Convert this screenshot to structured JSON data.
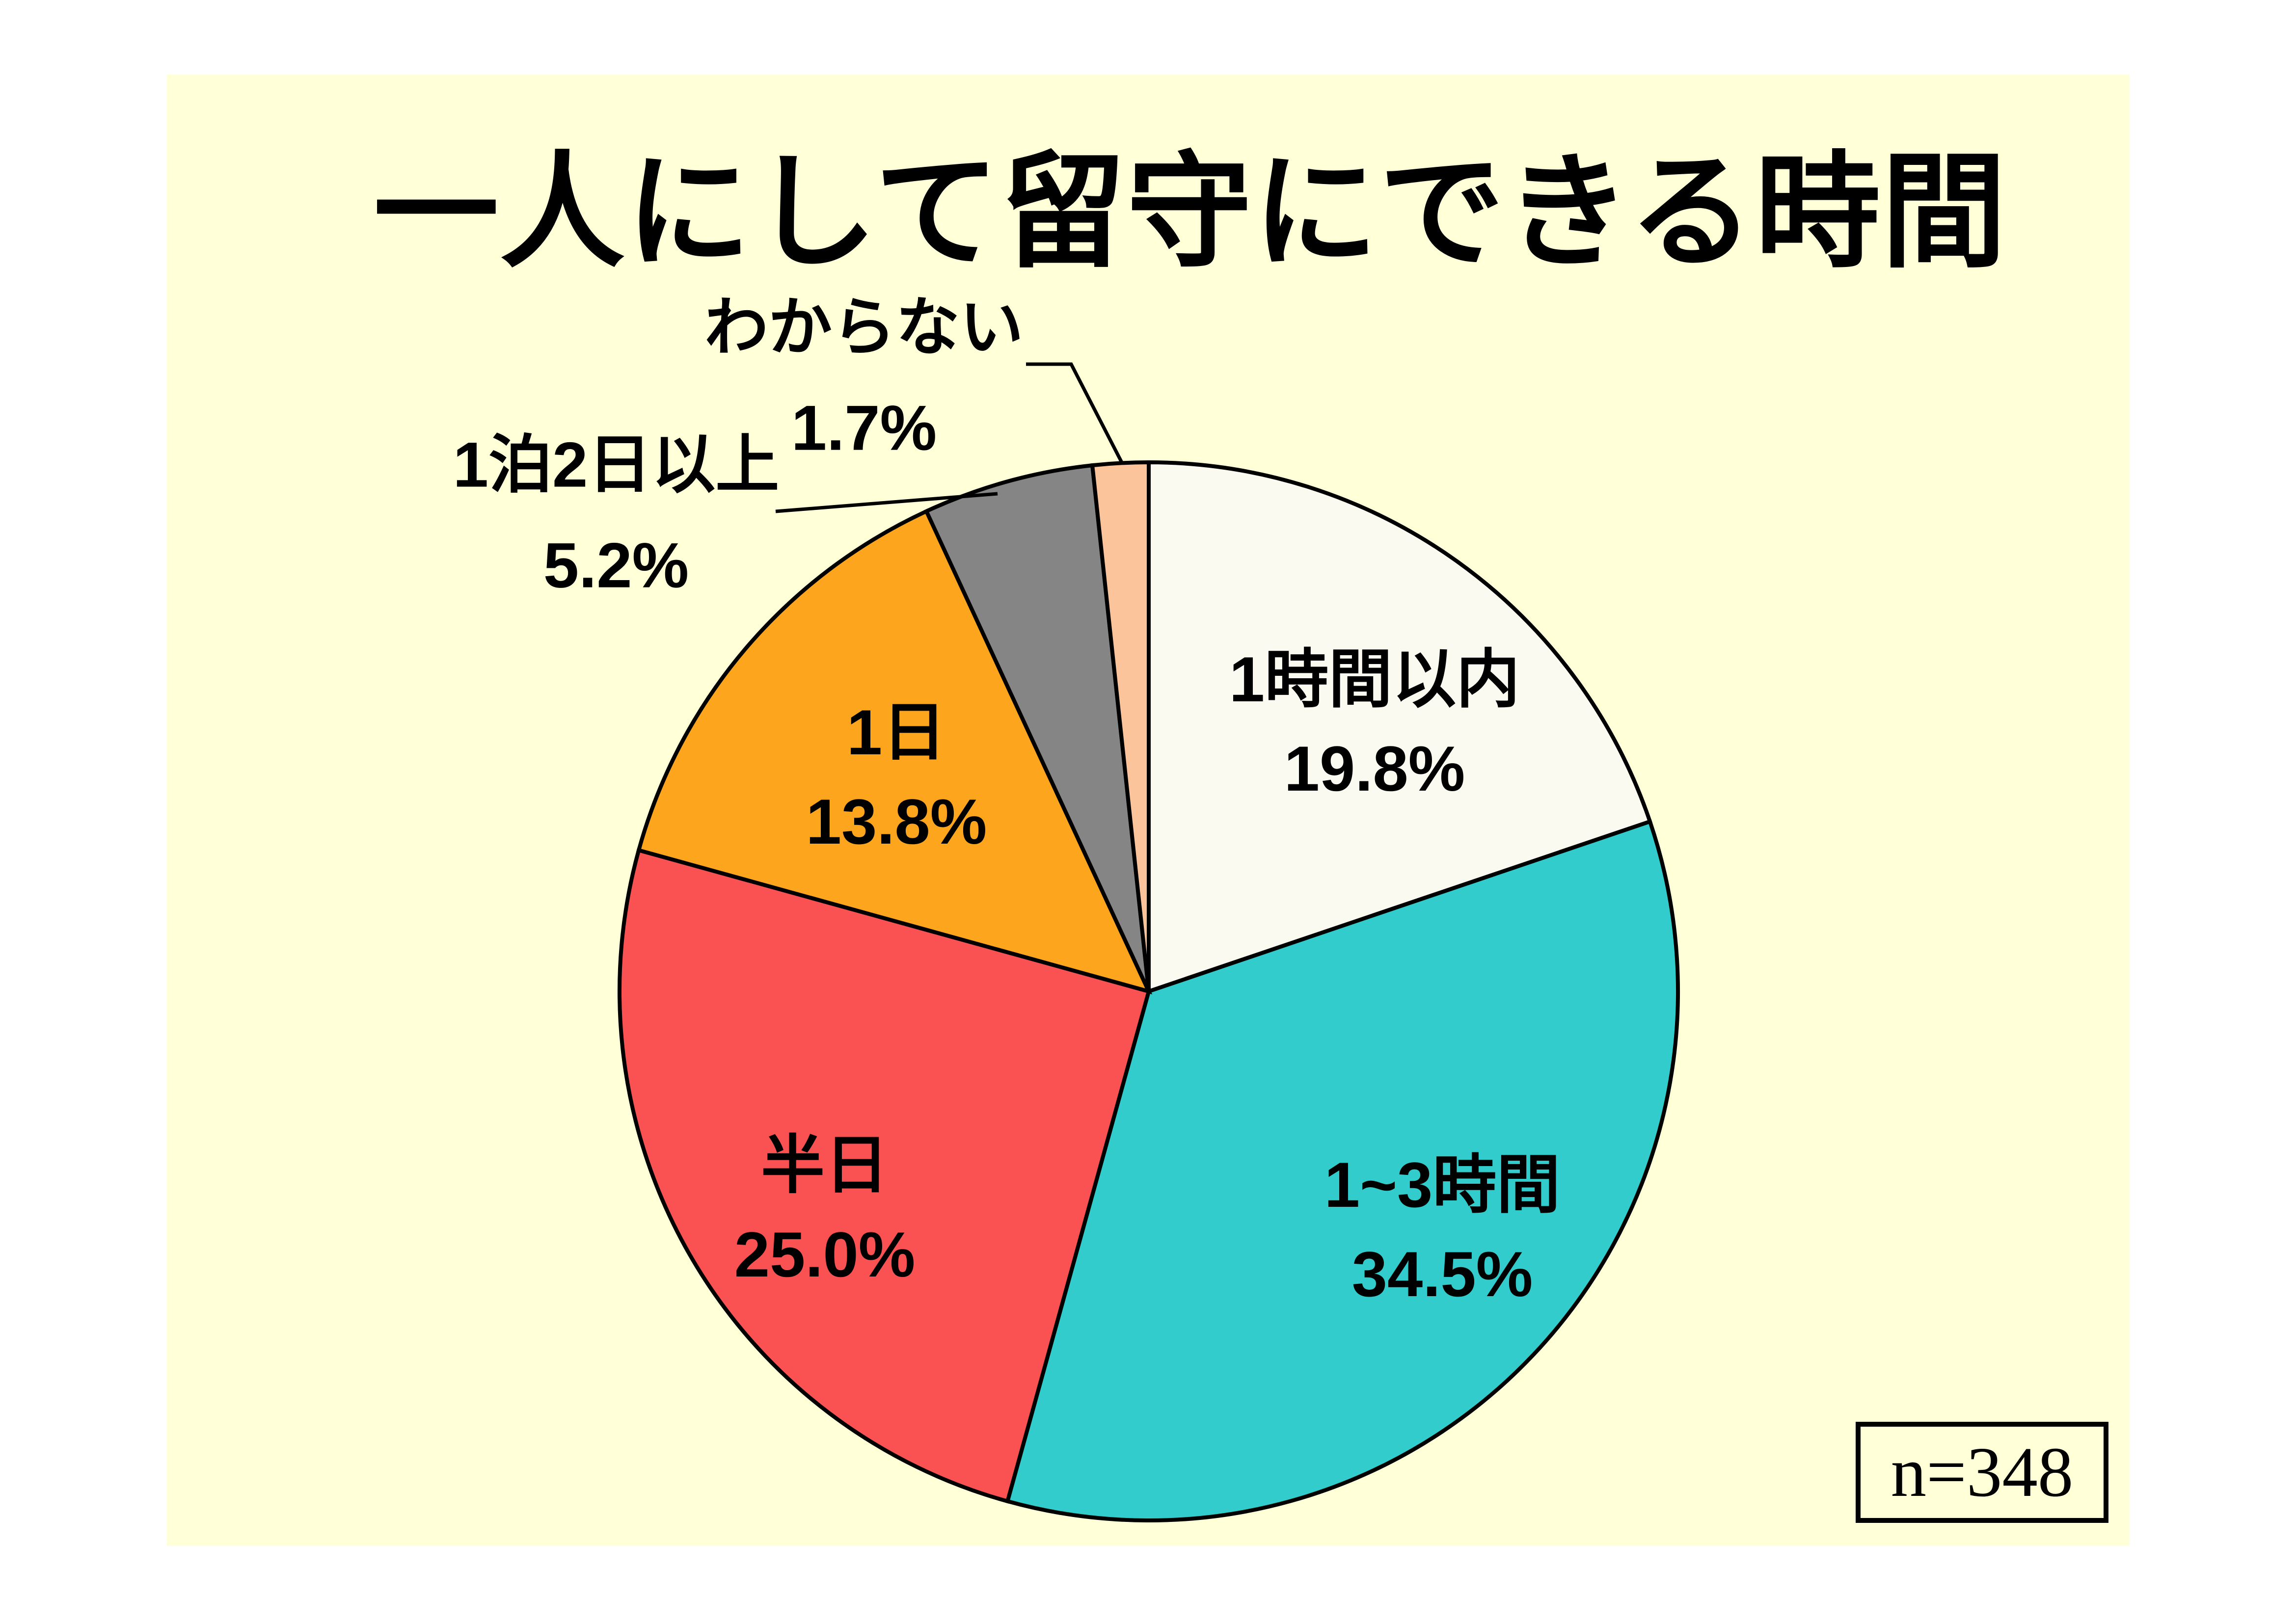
{
  "slide": {
    "title": "一人にして留守にできる時間",
    "background_color": "#FFFFD8",
    "page_background": "#FFFFFF"
  },
  "chart_data": {
    "type": "pie",
    "title": "一人にして留守にできる時間",
    "sample_note": "n=348",
    "start_angle": "top",
    "direction": "clockwise",
    "stroke_color": "#000000",
    "legend_position": "none",
    "slices": [
      {
        "label": "1時間以内",
        "value": 19.8,
        "pct_label": "19.8%",
        "color": "#FBFAF0",
        "label_placement": "inside"
      },
      {
        "label": "1~3時間",
        "value": 34.5,
        "pct_label": "34.5%",
        "color": "#31CCCB",
        "label_placement": "inside"
      },
      {
        "label": "半日",
        "value": 25.0,
        "pct_label": "25.0%",
        "color": "#FA5252",
        "label_placement": "inside"
      },
      {
        "label": "1日",
        "value": 13.8,
        "pct_label": "13.8%",
        "color": "#FCA51D",
        "label_placement": "inside"
      },
      {
        "label": "1泊2日以上",
        "value": 5.2,
        "pct_label": "5.2%",
        "color": "#858585",
        "label_placement": "outside"
      },
      {
        "label": "わからない",
        "value": 1.7,
        "pct_label": "1.7%",
        "color": "#FCC49B",
        "label_placement": "outside"
      }
    ]
  }
}
